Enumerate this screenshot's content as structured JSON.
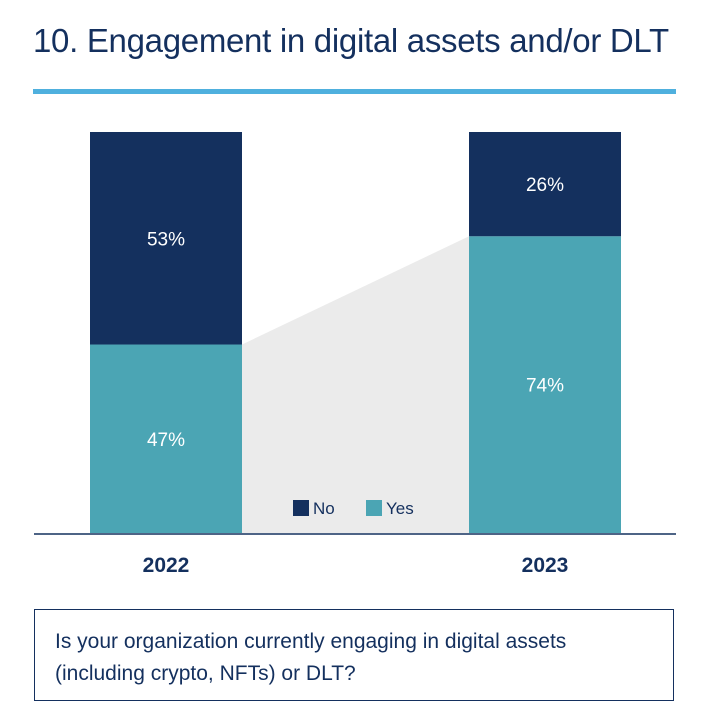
{
  "title": "10. Engagement in digital assets and/or DLT",
  "question": "Is your organization currently engaging in digital assets (including crypto, NFTs) or DLT?",
  "colors": {
    "no": "#14305e",
    "yes": "#4ba5b4",
    "connector": "#ebebeb",
    "accent_rule": "#4fb0de",
    "text": "#14305e"
  },
  "chart_data": {
    "type": "bar",
    "stacked": true,
    "title": "10. Engagement in digital assets and/or DLT",
    "categories": [
      "2022",
      "2023"
    ],
    "series": [
      {
        "name": "Yes",
        "values": [
          47,
          74
        ],
        "labels": [
          "47%",
          "74%"
        ]
      },
      {
        "name": "No",
        "values": [
          53,
          26
        ],
        "labels": [
          "53%",
          "26%"
        ]
      }
    ],
    "legend": [
      "No",
      "Yes"
    ],
    "legend_position": "bottom-center",
    "ylim": [
      0,
      100
    ],
    "xlabel": "",
    "ylabel": "",
    "grid": false
  }
}
